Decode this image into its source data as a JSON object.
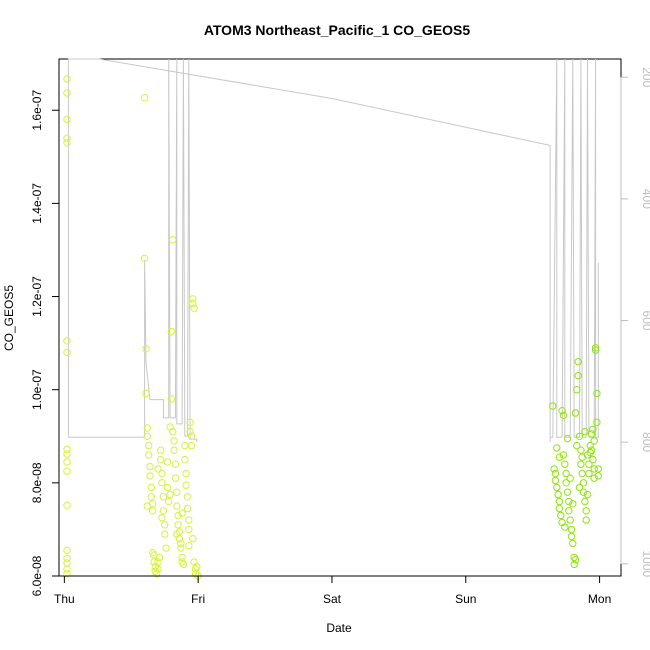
{
  "chart_data": {
    "type": "scatter",
    "title": "ATOM3 Northeast_Pacific_1 CO_GEOS5",
    "xlabel": "Date",
    "ylabel": "CO_GEOS5",
    "x_categories": [
      "Thu",
      "Fri",
      "Sat",
      "Sun",
      "Mon"
    ],
    "x_range_days": [
      -0.04,
      4.16
    ],
    "y_range": [
      6e-08,
      1.71e-07
    ],
    "y_ticks": [
      {
        "value": 6e-08,
        "label": "6.0e-08"
      },
      {
        "value": 8e-08,
        "label": "8.0e-08"
      },
      {
        "value": 1e-07,
        "label": "1.0e-07"
      },
      {
        "value": 1.2e-07,
        "label": "1.2e-07"
      },
      {
        "value": 1.4e-07,
        "label": "1.4e-07"
      },
      {
        "value": 1.6e-07,
        "label": "1.6e-07"
      }
    ],
    "y2_range": [
      1020,
      170
    ],
    "y2_ticks": [
      {
        "value": 200,
        "label": "200"
      },
      {
        "value": 400,
        "label": "400"
      },
      {
        "value": 600,
        "label": "600"
      },
      {
        "value": 800,
        "label": "800"
      },
      {
        "value": 1000,
        "label": "1000"
      }
    ],
    "grid": false,
    "colors": {
      "early_points": "#d8f23a",
      "late_points": "#8ee60a",
      "pressure_line": "#c8c8c8",
      "axis": "#000000",
      "right_axis": "#bdbdbd"
    },
    "series": [
      {
        "kind": "points",
        "points": [
          [
            0.02,
            1.667e-07
          ],
          [
            0.02,
            1.637e-07
          ],
          [
            0.02,
            1.58e-07
          ],
          [
            0.02,
            1.54e-07
          ],
          [
            0.02,
            1.53e-07
          ],
          [
            0.02,
            1.105e-07
          ],
          [
            0.02,
            1.08e-07
          ],
          [
            0.02,
            8.72e-08
          ],
          [
            0.02,
            8.62e-08
          ],
          [
            0.02,
            8.45e-08
          ],
          [
            0.02,
            8.25e-08
          ],
          [
            0.02,
            7.52e-08
          ],
          [
            0.02,
            6.55e-08
          ],
          [
            0.02,
            6.38e-08
          ],
          [
            0.02,
            6.28e-08
          ],
          [
            0.02,
            6.15e-08
          ],
          [
            0.02,
            6.05e-08
          ],
          [
            0.6,
            1.627e-07
          ],
          [
            0.6,
            1.282e-07
          ],
          [
            0.61,
            1.088e-07
          ],
          [
            0.61,
            9.92e-08
          ],
          [
            0.62,
            9.18e-08
          ],
          [
            0.62,
            9e-08
          ],
          [
            0.63,
            8.8e-08
          ],
          [
            0.63,
            8.6e-08
          ],
          [
            0.64,
            8.35e-08
          ],
          [
            0.64,
            8.15e-08
          ],
          [
            0.65,
            7.9e-08
          ],
          [
            0.65,
            7.7e-08
          ],
          [
            0.66,
            7.55e-08
          ],
          [
            0.66,
            7.4e-08
          ],
          [
            0.67,
            6.45e-08
          ],
          [
            0.67,
            6.3e-08
          ],
          [
            0.68,
            6.2e-08
          ],
          [
            0.68,
            6.1e-08
          ],
          [
            0.69,
            6.05e-08
          ],
          [
            0.7,
            6.15e-08
          ],
          [
            0.7,
            6.3e-08
          ],
          [
            0.71,
            6.4e-08
          ],
          [
            0.72,
            8.7e-08
          ],
          [
            0.72,
            8.5e-08
          ],
          [
            0.73,
            8.2e-08
          ],
          [
            0.73,
            8e-08
          ],
          [
            0.74,
            7.7e-08
          ],
          [
            0.74,
            7.4e-08
          ],
          [
            0.75,
            7.1e-08
          ],
          [
            0.75,
            6.9e-08
          ],
          [
            0.76,
            6.6e-08
          ],
          [
            0.77,
            7.9e-08
          ],
          [
            0.78,
            7.6e-08
          ],
          [
            0.79,
            9.2e-08
          ],
          [
            0.8,
            9.8e-08
          ],
          [
            0.8,
            1.125e-07
          ],
          [
            0.81,
            1.322e-07
          ],
          [
            0.81,
            9.1e-08
          ],
          [
            0.82,
            8.9e-08
          ],
          [
            0.82,
            8.7e-08
          ],
          [
            0.83,
            8.4e-08
          ],
          [
            0.83,
            8.1e-08
          ],
          [
            0.84,
            7.8e-08
          ],
          [
            0.84,
            7.5e-08
          ],
          [
            0.85,
            7.3e-08
          ],
          [
            0.85,
            7.1e-08
          ],
          [
            0.86,
            6.95e-08
          ],
          [
            0.86,
            6.8e-08
          ],
          [
            0.87,
            6.7e-08
          ],
          [
            0.87,
            6.6e-08
          ],
          [
            0.88,
            6.4e-08
          ],
          [
            0.88,
            6.3e-08
          ],
          [
            0.89,
            6.25e-08
          ],
          [
            0.9,
            8.8e-08
          ],
          [
            0.9,
            8.5e-08
          ],
          [
            0.91,
            8.2e-08
          ],
          [
            0.91,
            7.95e-08
          ],
          [
            0.92,
            7.7e-08
          ],
          [
            0.92,
            7.45e-08
          ],
          [
            0.93,
            7.2e-08
          ],
          [
            0.93,
            7e-08
          ],
          [
            0.94,
            9.3e-08
          ],
          [
            0.94,
            9.1e-08
          ],
          [
            0.95,
            9e-08
          ],
          [
            0.95,
            8.8e-08
          ],
          [
            0.96,
            1.195e-07
          ],
          [
            0.96,
            1.185e-07
          ],
          [
            0.97,
            1.175e-07
          ],
          [
            0.97,
            6.3e-08
          ],
          [
            0.98,
            6.15e-08
          ],
          [
            0.98,
            6.05e-08
          ],
          [
            0.99,
            6.2e-08
          ],
          [
            1.0,
            6e-08
          ],
          [
            0.62,
            7.5e-08
          ],
          [
            0.66,
            6.5e-08
          ],
          [
            0.7,
            8.3e-08
          ],
          [
            0.73,
            7.25e-08
          ],
          [
            0.77,
            8.45e-08
          ],
          [
            0.79,
            7.75e-08
          ],
          [
            0.84,
            6.9e-08
          ],
          [
            0.88,
            7.35e-08
          ],
          [
            0.93,
            6.65e-08
          ],
          [
            0.96,
            6.8e-08
          ],
          [
            3.65,
            9.65e-08
          ],
          [
            3.66,
            8.3e-08
          ],
          [
            3.67,
            8.2e-08
          ],
          [
            3.67,
            8.05e-08
          ],
          [
            3.68,
            7.9e-08
          ],
          [
            3.69,
            7.75e-08
          ],
          [
            3.7,
            7.6e-08
          ],
          [
            3.7,
            7.45e-08
          ],
          [
            3.71,
            7.3e-08
          ],
          [
            3.72,
            7.15e-08
          ],
          [
            3.72,
            9.55e-08
          ],
          [
            3.73,
            9.45e-08
          ],
          [
            3.73,
            8.6e-08
          ],
          [
            3.74,
            8.4e-08
          ],
          [
            3.75,
            8.2e-08
          ],
          [
            3.75,
            8e-08
          ],
          [
            3.76,
            7.8e-08
          ],
          [
            3.77,
            7.6e-08
          ],
          [
            3.77,
            7.4e-08
          ],
          [
            3.78,
            7.2e-08
          ],
          [
            3.79,
            7e-08
          ],
          [
            3.79,
            6.85e-08
          ],
          [
            3.8,
            6.7e-08
          ],
          [
            3.81,
            6.4e-08
          ],
          [
            3.81,
            6.25e-08
          ],
          [
            3.82,
            6.35e-08
          ],
          [
            3.82,
            9.5e-08
          ],
          [
            3.83,
            1e-07
          ],
          [
            3.84,
            1.03e-07
          ],
          [
            3.84,
            1.06e-07
          ],
          [
            3.85,
            9e-08
          ],
          [
            3.86,
            8.7e-08
          ],
          [
            3.86,
            8.4e-08
          ],
          [
            3.87,
            8.2e-08
          ],
          [
            3.88,
            8e-08
          ],
          [
            3.88,
            7.8e-08
          ],
          [
            3.89,
            7.6e-08
          ],
          [
            3.9,
            7.4e-08
          ],
          [
            3.9,
            7.2e-08
          ],
          [
            3.91,
            8.6e-08
          ],
          [
            3.92,
            8.4e-08
          ],
          [
            3.92,
            8.2e-08
          ],
          [
            3.93,
            8.8e-08
          ],
          [
            3.94,
            9.05e-08
          ],
          [
            3.94,
            8.7e-08
          ],
          [
            3.95,
            8.5e-08
          ],
          [
            3.96,
            8.3e-08
          ],
          [
            3.96,
            8.1e-08
          ],
          [
            3.97,
            1.09e-07
          ],
          [
            3.97,
            1.085e-07
          ],
          [
            3.98,
            9.92e-08
          ],
          [
            3.98,
            9.3e-08
          ],
          [
            3.99,
            8.3e-08
          ],
          [
            3.99,
            8.15e-08
          ],
          [
            3.68,
            8.75e-08
          ],
          [
            3.7,
            8.55e-08
          ],
          [
            3.74,
            7.05e-08
          ],
          [
            3.76,
            8.95e-08
          ],
          [
            3.78,
            8.1e-08
          ],
          [
            3.8,
            7.55e-08
          ],
          [
            3.83,
            8.8e-08
          ],
          [
            3.85,
            7.9e-08
          ],
          [
            3.87,
            8.55e-08
          ],
          [
            3.89,
            9.1e-08
          ],
          [
            3.91,
            7.75e-08
          ],
          [
            3.93,
            8.65e-08
          ],
          [
            3.95,
            9.15e-08
          ],
          [
            3.96,
            8.9e-08
          ]
        ]
      },
      {
        "kind": "line",
        "axis": "right",
        "points": [
          [
            0.03,
            792
          ],
          [
            0.03,
            170
          ],
          [
            0.26,
            170
          ],
          [
            2.0,
            235
          ],
          [
            3.63,
            312
          ],
          [
            3.63,
            800
          ],
          [
            3.63,
            792
          ],
          [
            3.65,
            792
          ],
          [
            3.68,
            170
          ],
          [
            3.68,
            792
          ],
          [
            3.72,
            792
          ],
          [
            3.74,
            170
          ],
          [
            3.74,
            792
          ],
          [
            3.78,
            792
          ],
          [
            3.8,
            170
          ],
          [
            3.81,
            792
          ],
          [
            3.85,
            792
          ],
          [
            3.86,
            170
          ],
          [
            3.87,
            792
          ],
          [
            3.9,
            792
          ],
          [
            3.91,
            170
          ],
          [
            3.92,
            792
          ],
          [
            3.96,
            792
          ],
          [
            3.97,
            170
          ],
          [
            3.97,
            792
          ],
          [
            3.99,
            792
          ],
          [
            3.99,
            505
          ]
        ]
      },
      {
        "kind": "line",
        "axis": "right",
        "points": [
          [
            0.03,
            792
          ],
          [
            0.6,
            792
          ],
          [
            0.6,
            500
          ],
          [
            0.61,
            670
          ],
          [
            0.64,
            730
          ],
          [
            0.74,
            730
          ],
          [
            0.74,
            760
          ],
          [
            0.78,
            760
          ],
          [
            0.78,
            170
          ],
          [
            0.79,
            760
          ],
          [
            0.83,
            760
          ],
          [
            0.84,
            170
          ],
          [
            0.84,
            770
          ],
          [
            0.88,
            770
          ],
          [
            0.89,
            170
          ],
          [
            0.9,
            790
          ],
          [
            0.92,
            790
          ],
          [
            0.93,
            170
          ],
          [
            0.94,
            795
          ],
          [
            0.99,
            795
          ],
          [
            0.99,
            800
          ]
        ]
      }
    ]
  }
}
